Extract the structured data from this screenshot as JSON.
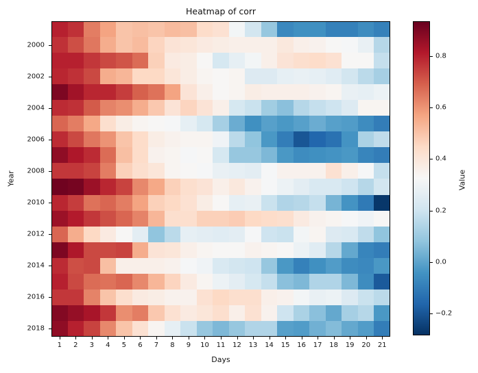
{
  "chart_data": {
    "type": "heatmap",
    "title": "Heatmap of corr",
    "xlabel": "Days",
    "ylabel": "Year",
    "colorbar_label": "Value",
    "x_tick_labels": [
      "1",
      "2",
      "3",
      "4",
      "5",
      "6",
      "7",
      "8",
      "9",
      "10",
      "11",
      "12",
      "13",
      "14",
      "15",
      "16",
      "17",
      "18",
      "19",
      "20",
      "21"
    ],
    "years": [
      1999,
      2000,
      2001,
      2002,
      2003,
      2004,
      2005,
      2006,
      2007,
      2008,
      2009,
      2010,
      2011,
      2012,
      2013,
      2014,
      2015,
      2016,
      2017,
      2018
    ],
    "y_tick_labels": [
      "2000",
      "2002",
      "2004",
      "2006",
      "2008",
      "2010",
      "2012",
      "2014",
      "2016",
      "2018"
    ],
    "colorbar_ticks": [
      "0.8",
      "0.6",
      "0.4",
      "0.2",
      "0.0",
      "−0.2"
    ],
    "vmin": -0.285,
    "vmax": 0.935,
    "colormap": "RdBu_r",
    "colormap_stops": [
      "#053061",
      "#2166ac",
      "#4393c3",
      "#92c5de",
      "#d1e5f0",
      "#f7f7f7",
      "#fddbc7",
      "#f4a582",
      "#d6604d",
      "#b2182b",
      "#67001f"
    ],
    "values": [
      [
        0.8,
        0.77,
        0.64,
        0.57,
        0.5,
        0.51,
        0.5,
        0.52,
        0.51,
        0.44,
        0.42,
        0.31,
        0.21,
        0.09,
        -0.07,
        -0.05,
        -0.05,
        -0.09,
        -0.09,
        -0.06,
        -0.09
      ],
      [
        0.77,
        0.72,
        0.65,
        0.55,
        0.5,
        0.52,
        0.46,
        0.41,
        0.4,
        0.38,
        0.37,
        0.36,
        0.36,
        0.36,
        0.39,
        0.36,
        0.35,
        0.33,
        0.32,
        0.28,
        0.15
      ],
      [
        0.8,
        0.8,
        0.76,
        0.73,
        0.71,
        0.67,
        0.47,
        0.38,
        0.37,
        0.33,
        0.22,
        0.27,
        0.31,
        0.36,
        0.41,
        0.43,
        0.44,
        0.42,
        0.33,
        0.33,
        0.18
      ],
      [
        0.79,
        0.77,
        0.73,
        0.55,
        0.53,
        0.45,
        0.45,
        0.4,
        0.37,
        0.34,
        0.33,
        0.34,
        0.24,
        0.24,
        0.27,
        0.28,
        0.27,
        0.25,
        0.21,
        0.16,
        0.12
      ],
      [
        0.9,
        0.84,
        0.79,
        0.79,
        0.75,
        0.69,
        0.66,
        0.57,
        0.41,
        0.36,
        0.33,
        0.34,
        0.37,
        0.36,
        0.36,
        0.36,
        0.35,
        0.34,
        0.28,
        0.27,
        0.29
      ],
      [
        0.78,
        0.77,
        0.7,
        0.63,
        0.61,
        0.55,
        0.49,
        0.41,
        0.46,
        0.41,
        0.36,
        0.22,
        0.19,
        0.11,
        0.07,
        0.15,
        0.18,
        0.2,
        0.24,
        0.34,
        0.34
      ],
      [
        0.68,
        0.64,
        0.56,
        0.43,
        0.37,
        0.34,
        0.33,
        0.32,
        0.27,
        0.22,
        0.12,
        0.02,
        -0.05,
        -0.01,
        -0.03,
        -0.01,
        0.02,
        -0.01,
        -0.02,
        -0.06,
        -0.1
      ],
      [
        0.78,
        0.73,
        0.65,
        0.6,
        0.5,
        0.44,
        0.37,
        0.35,
        0.34,
        0.34,
        0.3,
        0.16,
        0.08,
        -0.03,
        -0.1,
        -0.2,
        -0.16,
        -0.13,
        -0.04,
        0.13,
        0.17
      ],
      [
        0.87,
        0.82,
        0.78,
        0.67,
        0.51,
        0.44,
        0.35,
        0.34,
        0.32,
        0.33,
        0.22,
        0.09,
        0.09,
        0.05,
        -0.03,
        -0.06,
        -0.05,
        -0.04,
        -0.03,
        -0.08,
        -0.1
      ],
      [
        0.76,
        0.76,
        0.74,
        0.64,
        0.47,
        0.43,
        0.4,
        0.34,
        0.33,
        0.32,
        0.28,
        0.27,
        0.26,
        0.32,
        0.35,
        0.35,
        0.35,
        0.42,
        0.36,
        0.32,
        0.18
      ],
      [
        0.92,
        0.91,
        0.85,
        0.79,
        0.74,
        0.62,
        0.56,
        0.47,
        0.43,
        0.41,
        0.36,
        0.39,
        0.35,
        0.32,
        0.29,
        0.26,
        0.23,
        0.23,
        0.2,
        0.15,
        0.21
      ],
      [
        0.79,
        0.75,
        0.66,
        0.68,
        0.64,
        0.57,
        0.47,
        0.45,
        0.42,
        0.37,
        0.33,
        0.27,
        0.28,
        0.19,
        0.14,
        0.15,
        0.18,
        0.04,
        -0.04,
        -0.11,
        -0.27
      ],
      [
        0.85,
        0.81,
        0.76,
        0.72,
        0.68,
        0.63,
        0.53,
        0.43,
        0.43,
        0.47,
        0.47,
        0.48,
        0.45,
        0.44,
        0.43,
        0.38,
        0.35,
        0.34,
        0.32,
        0.3,
        0.33
      ],
      [
        0.68,
        0.55,
        0.45,
        0.38,
        0.33,
        0.26,
        0.08,
        0.16,
        0.27,
        0.26,
        0.25,
        0.26,
        0.32,
        0.2,
        0.19,
        0.31,
        0.34,
        0.24,
        0.23,
        0.17,
        0.08
      ],
      [
        0.9,
        0.82,
        0.73,
        0.73,
        0.74,
        0.55,
        0.41,
        0.4,
        0.36,
        0.34,
        0.33,
        0.33,
        0.35,
        0.34,
        0.33,
        0.29,
        0.25,
        0.15,
        0.01,
        -0.08,
        -0.1
      ],
      [
        0.78,
        0.72,
        0.73,
        0.51,
        0.36,
        0.36,
        0.36,
        0.35,
        0.32,
        0.3,
        0.23,
        0.21,
        0.2,
        0.09,
        -0.03,
        -0.09,
        -0.05,
        -0.02,
        -0.06,
        -0.07,
        -0.03
      ],
      [
        0.8,
        0.73,
        0.67,
        0.66,
        0.68,
        0.62,
        0.53,
        0.46,
        0.38,
        0.34,
        0.29,
        0.26,
        0.22,
        0.18,
        0.07,
        0.05,
        0.14,
        0.14,
        0.05,
        -0.06,
        -0.19
      ],
      [
        0.76,
        0.76,
        0.63,
        0.5,
        0.43,
        0.38,
        0.37,
        0.35,
        0.35,
        0.42,
        0.45,
        0.43,
        0.43,
        0.36,
        0.35,
        0.31,
        0.28,
        0.29,
        0.24,
        0.19,
        0.16
      ],
      [
        0.89,
        0.86,
        0.83,
        0.76,
        0.61,
        0.64,
        0.49,
        0.42,
        0.38,
        0.4,
        0.43,
        0.36,
        0.42,
        0.35,
        0.2,
        0.13,
        0.07,
        0.01,
        0.12,
        0.15,
        -0.03
      ],
      [
        0.87,
        0.8,
        0.74,
        0.62,
        0.5,
        0.42,
        0.34,
        0.27,
        0.19,
        0.09,
        0.05,
        0.09,
        0.14,
        0.14,
        -0.01,
        -0.02,
        0.03,
        0.06,
        0.01,
        -0.02,
        -0.1
      ]
    ]
  }
}
